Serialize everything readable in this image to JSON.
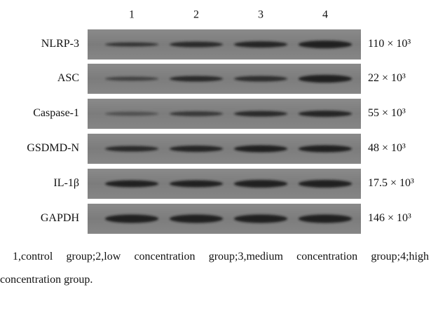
{
  "figure": {
    "lanes": [
      "1",
      "2",
      "3",
      "4"
    ],
    "rows": [
      {
        "label": "NLRP-3",
        "weight": "110 × 10³"
      },
      {
        "label": "ASC",
        "weight": "22 × 10³"
      },
      {
        "label": "Caspase-1",
        "weight": "55 × 10³"
      },
      {
        "label": "GSDMD-N",
        "weight": "48 × 10³"
      },
      {
        "label": "IL-1β",
        "weight": "17.5 × 10³"
      },
      {
        "label": "GAPDH",
        "weight": "146 × 10³"
      }
    ],
    "caption": "1,control group;2,low concentration group;3,medium concentration group;4;high concentration group."
  }
}
